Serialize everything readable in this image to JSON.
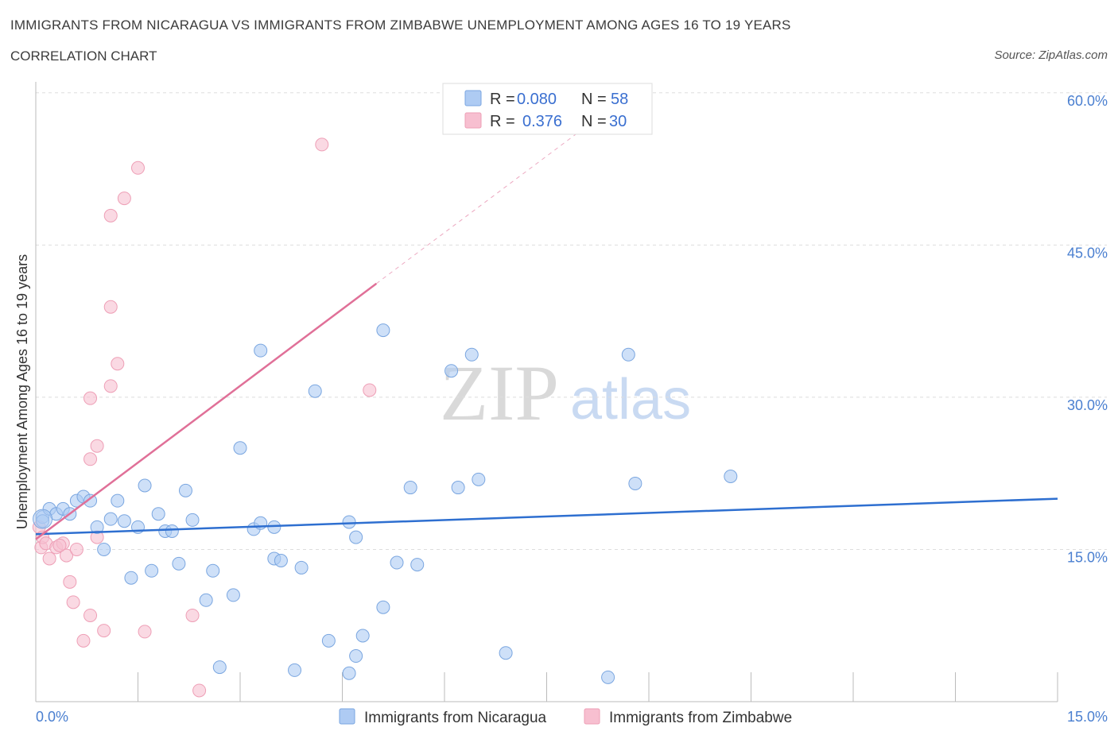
{
  "header": {
    "title": "IMMIGRANTS FROM NICARAGUA VS IMMIGRANTS FROM ZIMBABWE UNEMPLOYMENT AMONG AGES 16 TO 19 YEARS",
    "subtitle": "CORRELATION CHART",
    "source": "Source: ZipAtlas.com"
  },
  "watermark": {
    "zip": "ZIP",
    "atlas": "atlas"
  },
  "colors": {
    "nicaragua_fill": "#aecbf3",
    "nicaragua_stroke": "#7aa6e0",
    "nicaragua_line": "#2e6fd0",
    "zimbabwe_fill": "#f7bfd0",
    "zimbabwe_stroke": "#ee9fb6",
    "zimbabwe_line": "#e07098",
    "grid": "#dddddd",
    "tick_label": "#4a7fd0"
  },
  "legend_top": {
    "rows": [
      {
        "r_label": "R =",
        "r_value": "0.080",
        "n_label": "N =",
        "n_value": "58"
      },
      {
        "r_label": "R =",
        "r_value": "0.376",
        "n_label": "N =",
        "n_value": "30"
      }
    ]
  },
  "legend_bottom": {
    "items": [
      "Immigrants from Nicaragua",
      "Immigrants from Zimbabwe"
    ]
  },
  "chart_data": {
    "type": "scatter",
    "title": "IMMIGRANTS FROM NICARAGUA VS IMMIGRANTS FROM ZIMBABWE UNEMPLOYMENT AMONG AGES 16 TO 19 YEARS",
    "xlabel": "",
    "ylabel": "Unemployment Among Ages 16 to 19 years",
    "xlim": [
      0,
      15
    ],
    "ylim": [
      0,
      60
    ],
    "x_tick_labels": [
      "0.0%",
      "15.0%"
    ],
    "y_ticks": [
      15,
      30,
      45,
      60
    ],
    "y_tick_labels": [
      "15.0%",
      "30.0%",
      "45.0%",
      "60.0%"
    ],
    "legend_position": "top-center",
    "series": [
      {
        "name": "Immigrants from Nicaragua",
        "R": 0.08,
        "N": 58,
        "trend": {
          "x": [
            0,
            15
          ],
          "y": [
            16.5,
            20.0
          ]
        },
        "points": [
          [
            0.1,
            18.2
          ],
          [
            0.1,
            17.8
          ],
          [
            0.2,
            19.0
          ],
          [
            0.3,
            18.5
          ],
          [
            0.4,
            19.0
          ],
          [
            0.5,
            18.5
          ],
          [
            0.6,
            19.8
          ],
          [
            0.7,
            20.2
          ],
          [
            0.8,
            19.8
          ],
          [
            0.9,
            17.2
          ],
          [
            1.0,
            15.0
          ],
          [
            1.1,
            18.0
          ],
          [
            1.2,
            19.8
          ],
          [
            1.3,
            17.8
          ],
          [
            1.4,
            12.2
          ],
          [
            1.5,
            17.2
          ],
          [
            1.6,
            21.3
          ],
          [
            1.7,
            12.9
          ],
          [
            1.8,
            18.5
          ],
          [
            1.9,
            16.8
          ],
          [
            2.0,
            16.8
          ],
          [
            2.1,
            13.6
          ],
          [
            2.2,
            20.8
          ],
          [
            2.3,
            17.9
          ],
          [
            2.5,
            10.0
          ],
          [
            2.6,
            12.9
          ],
          [
            2.7,
            3.4
          ],
          [
            2.9,
            10.5
          ],
          [
            3.0,
            25.0
          ],
          [
            3.2,
            17.0
          ],
          [
            3.3,
            17.6
          ],
          [
            3.3,
            34.6
          ],
          [
            3.5,
            17.2
          ],
          [
            3.5,
            14.1
          ],
          [
            3.6,
            13.9
          ],
          [
            3.8,
            3.1
          ],
          [
            3.9,
            13.2
          ],
          [
            4.1,
            30.6
          ],
          [
            4.3,
            6.0
          ],
          [
            4.6,
            17.7
          ],
          [
            4.6,
            2.8
          ],
          [
            4.7,
            4.5
          ],
          [
            4.7,
            16.2
          ],
          [
            4.8,
            6.5
          ],
          [
            5.1,
            9.3
          ],
          [
            5.1,
            36.6
          ],
          [
            5.3,
            13.7
          ],
          [
            5.5,
            21.1
          ],
          [
            5.6,
            13.5
          ],
          [
            6.1,
            32.6
          ],
          [
            6.2,
            21.1
          ],
          [
            6.4,
            34.2
          ],
          [
            6.5,
            21.9
          ],
          [
            6.9,
            4.8
          ],
          [
            8.4,
            2.4
          ],
          [
            8.7,
            34.2
          ],
          [
            8.8,
            21.5
          ],
          [
            10.2,
            22.2
          ]
        ]
      },
      {
        "name": "Immigrants from Zimbabwe",
        "R": 0.376,
        "N": 30,
        "trend": {
          "x": [
            0,
            5.0
          ],
          "y": [
            16.0,
            41.2
          ]
        },
        "trend_extension": {
          "x": [
            5.0,
            8.8
          ],
          "y": [
            41.2,
            60.3
          ]
        },
        "points": [
          [
            0.05,
            17.2
          ],
          [
            0.08,
            15.2
          ],
          [
            0.1,
            16.2
          ],
          [
            0.15,
            15.6
          ],
          [
            0.2,
            14.1
          ],
          [
            0.3,
            15.2
          ],
          [
            0.4,
            15.6
          ],
          [
            0.45,
            14.4
          ],
          [
            0.5,
            11.8
          ],
          [
            0.55,
            9.8
          ],
          [
            0.6,
            15.0
          ],
          [
            0.7,
            6.0
          ],
          [
            0.8,
            8.5
          ],
          [
            0.9,
            16.2
          ],
          [
            1.0,
            7.0
          ],
          [
            0.8,
            29.9
          ],
          [
            0.9,
            25.2
          ],
          [
            0.8,
            23.9
          ],
          [
            1.1,
            31.1
          ],
          [
            1.2,
            33.3
          ],
          [
            1.1,
            38.9
          ],
          [
            1.1,
            47.9
          ],
          [
            1.3,
            49.6
          ],
          [
            1.5,
            52.6
          ],
          [
            1.6,
            6.9
          ],
          [
            2.3,
            8.5
          ],
          [
            2.4,
            1.1
          ],
          [
            4.2,
            54.9
          ],
          [
            4.9,
            30.7
          ],
          [
            0.35,
            15.4
          ]
        ]
      }
    ]
  }
}
